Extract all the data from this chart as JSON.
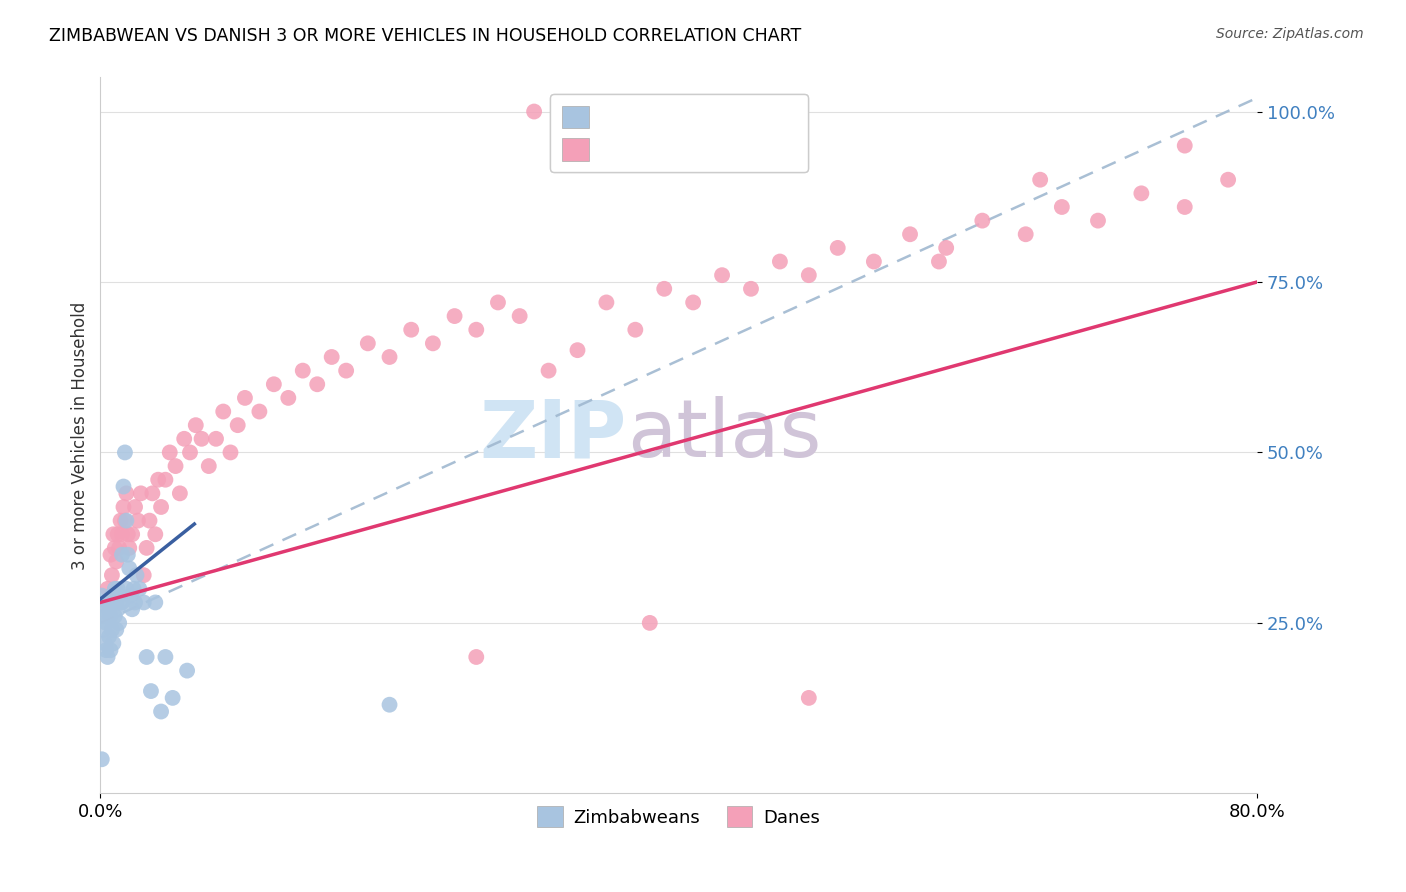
{
  "title": "ZIMBABWEAN VS DANISH 3 OR MORE VEHICLES IN HOUSEHOLD CORRELATION CHART",
  "source": "Source: ZipAtlas.com",
  "ylabel": "3 or more Vehicles in Household",
  "x_min": 0.0,
  "x_max": 0.8,
  "y_min": 0.0,
  "y_max": 1.05,
  "y_ticks": [
    0.25,
    0.5,
    0.75,
    1.0
  ],
  "y_tick_labels": [
    "25.0%",
    "50.0%",
    "75.0%",
    "100.0%"
  ],
  "zimbabwe_color": "#a8c4e0",
  "danish_color": "#f4a0b8",
  "zimbabwe_line_color": "#3a5fa0",
  "danish_line_color": "#e03870",
  "dash_line_color": "#a0b8d0",
  "background_color": "#ffffff",
  "grid_color": "#e0e0e0",
  "right_tick_color": "#4080c0",
  "watermark_zip_color": "#d0e4f4",
  "watermark_atlas_color": "#d0c4d8",
  "zim_x": [
    0.001,
    0.002,
    0.002,
    0.003,
    0.003,
    0.004,
    0.004,
    0.005,
    0.005,
    0.006,
    0.006,
    0.007,
    0.007,
    0.008,
    0.008,
    0.009,
    0.009,
    0.01,
    0.01,
    0.011,
    0.011,
    0.012,
    0.012,
    0.013,
    0.013,
    0.014,
    0.015,
    0.015,
    0.016,
    0.017,
    0.018,
    0.018,
    0.019,
    0.02,
    0.021,
    0.022,
    0.023,
    0.024,
    0.025,
    0.027,
    0.03,
    0.032,
    0.035,
    0.038,
    0.042,
    0.045,
    0.05,
    0.06,
    0.2,
    0.001
  ],
  "zim_y": [
    0.29,
    0.27,
    0.24,
    0.26,
    0.22,
    0.25,
    0.21,
    0.28,
    0.2,
    0.27,
    0.23,
    0.26,
    0.21,
    0.29,
    0.24,
    0.28,
    0.22,
    0.3,
    0.26,
    0.28,
    0.24,
    0.3,
    0.27,
    0.29,
    0.25,
    0.28,
    0.35,
    0.28,
    0.45,
    0.5,
    0.4,
    0.3,
    0.35,
    0.33,
    0.29,
    0.27,
    0.3,
    0.28,
    0.32,
    0.3,
    0.28,
    0.2,
    0.15,
    0.28,
    0.12,
    0.2,
    0.14,
    0.18,
    0.13,
    0.05
  ],
  "dan_x": [
    0.005,
    0.007,
    0.008,
    0.009,
    0.01,
    0.011,
    0.012,
    0.013,
    0.014,
    0.015,
    0.016,
    0.017,
    0.018,
    0.019,
    0.02,
    0.022,
    0.024,
    0.026,
    0.028,
    0.03,
    0.032,
    0.034,
    0.036,
    0.038,
    0.04,
    0.042,
    0.045,
    0.048,
    0.052,
    0.055,
    0.058,
    0.062,
    0.066,
    0.07,
    0.075,
    0.08,
    0.085,
    0.09,
    0.095,
    0.1,
    0.11,
    0.12,
    0.13,
    0.14,
    0.15,
    0.16,
    0.17,
    0.185,
    0.2,
    0.215,
    0.23,
    0.245,
    0.26,
    0.275,
    0.29,
    0.31,
    0.33,
    0.35,
    0.37,
    0.39,
    0.41,
    0.43,
    0.45,
    0.47,
    0.49,
    0.51,
    0.535,
    0.56,
    0.585,
    0.61,
    0.64,
    0.665,
    0.69,
    0.72,
    0.75,
    0.78,
    0.3,
    0.58,
    0.65,
    0.75,
    0.38,
    0.26,
    0.49
  ],
  "dan_y": [
    0.3,
    0.35,
    0.32,
    0.38,
    0.36,
    0.34,
    0.38,
    0.36,
    0.4,
    0.38,
    0.42,
    0.4,
    0.44,
    0.38,
    0.36,
    0.38,
    0.42,
    0.4,
    0.44,
    0.32,
    0.36,
    0.4,
    0.44,
    0.38,
    0.46,
    0.42,
    0.46,
    0.5,
    0.48,
    0.44,
    0.52,
    0.5,
    0.54,
    0.52,
    0.48,
    0.52,
    0.56,
    0.5,
    0.54,
    0.58,
    0.56,
    0.6,
    0.58,
    0.62,
    0.6,
    0.64,
    0.62,
    0.66,
    0.64,
    0.68,
    0.66,
    0.7,
    0.68,
    0.72,
    0.7,
    0.62,
    0.65,
    0.72,
    0.68,
    0.74,
    0.72,
    0.76,
    0.74,
    0.78,
    0.76,
    0.8,
    0.78,
    0.82,
    0.8,
    0.84,
    0.82,
    0.86,
    0.84,
    0.88,
    0.86,
    0.9,
    1.0,
    0.78,
    0.9,
    0.95,
    0.25,
    0.2,
    0.14
  ],
  "zim_line_x0": 0.0,
  "zim_line_x1": 0.065,
  "zim_line_y0": 0.285,
  "zim_line_y1": 0.395,
  "dan_line_x0": 0.0,
  "dan_line_x1": 0.8,
  "dan_line_y0": 0.28,
  "dan_line_y1": 0.75,
  "dash_line_x0": 0.0,
  "dash_line_x1": 0.8,
  "dash_line_y0": 0.25,
  "dash_line_y1": 1.02
}
